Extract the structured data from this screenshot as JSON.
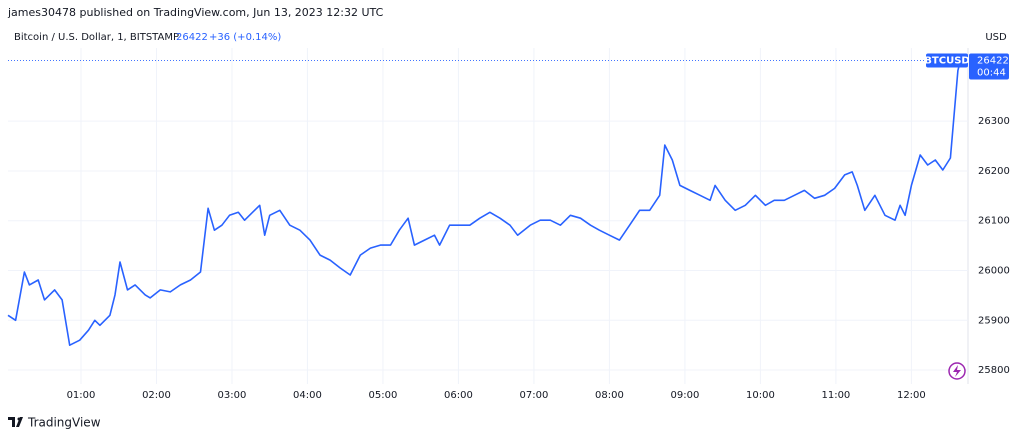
{
  "header": {
    "publisher": "james30478 published on TradingView.com, Jun 13, 2023 12:32 UTC"
  },
  "footer": {
    "brand": "TradingView"
  },
  "chart_data": {
    "type": "line",
    "title": "Bitcoin / U.S. Dollar, 1, BITSTAMP",
    "change_label": "+36 (+0.14%)",
    "y_axis_label": "USD",
    "price_tag": {
      "symbol": "BTCUSD",
      "countdown": "00:44"
    },
    "grid": true,
    "x": [
      2,
      8,
      15,
      19,
      26,
      31,
      39,
      45,
      51,
      59,
      66,
      71,
      75,
      83,
      87,
      91,
      97,
      103,
      111,
      115,
      123,
      131,
      139,
      147,
      155,
      158,
      161,
      166,
      172,
      178,
      185,
      190,
      198,
      202,
      206,
      210,
      218,
      226,
      234,
      242,
      250,
      258,
      266,
      274,
      282,
      290,
      298,
      306,
      313,
      320,
      325,
      333,
      341,
      345,
      353,
      360,
      369,
      377,
      385,
      393,
      401,
      407,
      417,
      425,
      433,
      441,
      449,
      457,
      465,
      472,
      480,
      488,
      496,
      504,
      512,
      520,
      524,
      530,
      536,
      544,
      552,
      560,
      564,
      572,
      580,
      588,
      596,
      604,
      611,
      619,
      627,
      635,
      643,
      651,
      659,
      667,
      673,
      677,
      683,
      691,
      699,
      707,
      711,
      715,
      720,
      727,
      733,
      739,
      745,
      751,
      757,
      759
    ],
    "series": [
      {
        "name": "BTCUSD",
        "color": "#2962ff",
        "values": [
          25910,
          25900,
          25997,
          25971,
          25981,
          25941,
          25961,
          25941,
          25850,
          25860,
          25880,
          25900,
          25890,
          25910,
          25951,
          26017,
          25961,
          25971,
          25951,
          25945,
          25961,
          25957,
          25971,
          25981,
          25997,
          26061,
          26125,
          26081,
          26091,
          26111,
          26117,
          26101,
          26121,
          26131,
          26071,
          26111,
          26121,
          26091,
          26081,
          26061,
          26031,
          26021,
          26005,
          25991,
          26031,
          26045,
          26051,
          26051,
          26081,
          26105,
          26051,
          26061,
          26071,
          26051,
          26091,
          26091,
          26091,
          26105,
          26117,
          26105,
          26091,
          26071,
          26091,
          26101,
          26101,
          26091,
          26111,
          26105,
          26091,
          26081,
          26071,
          26061,
          26091,
          26121,
          26121,
          26151,
          26252,
          26222,
          26171,
          26161,
          26151,
          26141,
          26171,
          26141,
          26121,
          26131,
          26151,
          26131,
          26141,
          26141,
          26151,
          26161,
          26145,
          26151,
          26165,
          26192,
          26198,
          26171,
          26121,
          26151,
          26111,
          26101,
          26131,
          26111,
          26171,
          26232,
          26212,
          26222,
          26202,
          26226,
          26402,
          26422
        ]
      }
    ],
    "xlim": [
      0,
      765
    ],
    "xticks": [
      {
        "value": 60,
        "label": "01:00"
      },
      {
        "value": 120,
        "label": "02:00"
      },
      {
        "value": 180,
        "label": "03:00"
      },
      {
        "value": 240,
        "label": "04:00"
      },
      {
        "value": 300,
        "label": "05:00"
      },
      {
        "value": 360,
        "label": "06:00"
      },
      {
        "value": 420,
        "label": "07:00"
      },
      {
        "value": 480,
        "label": "08:00"
      },
      {
        "value": 540,
        "label": "09:00"
      },
      {
        "value": 600,
        "label": "10:00"
      },
      {
        "value": 660,
        "label": "11:00"
      },
      {
        "value": 720,
        "label": "12:00"
      }
    ],
    "ylim": [
      25772,
      26447
    ],
    "yticks": [
      25800,
      25900,
      26000,
      26100,
      26200,
      26300
    ]
  }
}
